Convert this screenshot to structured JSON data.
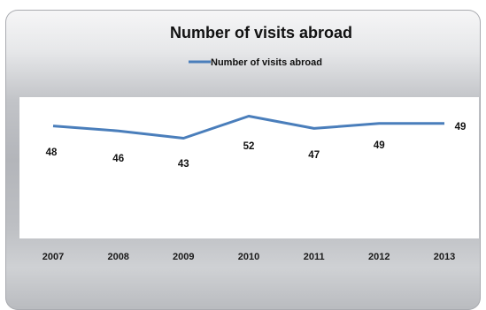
{
  "chart_data": {
    "type": "line",
    "title": "Number of visits abroad",
    "categories": [
      "2007",
      "2008",
      "2009",
      "2010",
      "2011",
      "2012",
      "2013"
    ],
    "series": [
      {
        "name": "Number of visits abroad",
        "values": [
          48,
          46,
          43,
          52,
          47,
          49,
          49
        ],
        "color": "#4a7ebb"
      }
    ],
    "legend_position": "top",
    "grid": false,
    "y_axis_visible": false,
    "plot_background": "#ffffff"
  }
}
